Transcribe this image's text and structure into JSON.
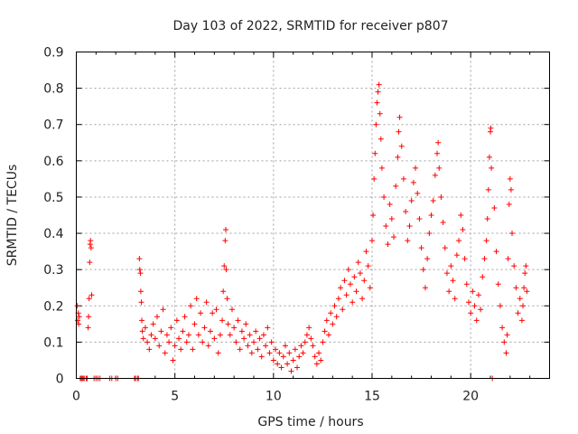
{
  "chart_data": {
    "type": "scatter",
    "title": "Day 103 of 2022, SRMTID for receiver p807",
    "xlabel": "GPS time / hours",
    "ylabel": "SRMTID / TECUs",
    "xlim": [
      0,
      24.0
    ],
    "ylim": [
      0,
      0.9
    ],
    "xticks": [
      0,
      5,
      10,
      15,
      20
    ],
    "xtick_labels": [
      "0",
      "5",
      "10",
      "15",
      "20"
    ],
    "yticks": [
      0,
      0.1,
      0.2,
      0.3,
      0.4,
      0.5,
      0.6,
      0.7,
      0.8,
      0.9
    ],
    "ytick_labels": [
      "0",
      "0.1",
      "0.2",
      "0.3",
      "0.4",
      "0.5",
      "0.6",
      "0.7",
      "0.8",
      "0.9"
    ],
    "grid": true,
    "marker": "+",
    "color": "#ff0000",
    "series": [
      {
        "name": "SRMTID",
        "points": [
          [
            0.05,
            0.2
          ],
          [
            0.07,
            0.16
          ],
          [
            0.1,
            0.18
          ],
          [
            0.12,
            0.15
          ],
          [
            0.15,
            0.17
          ],
          [
            0.2,
            0.0
          ],
          [
            0.25,
            0.0
          ],
          [
            0.3,
            0.0
          ],
          [
            0.35,
            0.0
          ],
          [
            0.4,
            0.0
          ],
          [
            0.5,
            0.0
          ],
          [
            0.55,
            0.0
          ],
          [
            0.6,
            0.14
          ],
          [
            0.62,
            0.17
          ],
          [
            0.65,
            0.22
          ],
          [
            0.68,
            0.32
          ],
          [
            0.7,
            0.37
          ],
          [
            0.72,
            0.38
          ],
          [
            0.75,
            0.36
          ],
          [
            0.78,
            0.23
          ],
          [
            0.9,
            0.0
          ],
          [
            1.0,
            0.0
          ],
          [
            1.1,
            0.0
          ],
          [
            1.2,
            0.0
          ],
          [
            1.7,
            0.0
          ],
          [
            1.8,
            0.0
          ],
          [
            2.0,
            0.0
          ],
          [
            2.1,
            0.0
          ],
          [
            2.95,
            0.0
          ],
          [
            3.0,
            0.0
          ],
          [
            3.1,
            0.0
          ],
          [
            3.15,
            0.0
          ],
          [
            3.2,
            0.33
          ],
          [
            3.22,
            0.3
          ],
          [
            3.25,
            0.29
          ],
          [
            3.27,
            0.24
          ],
          [
            3.3,
            0.21
          ],
          [
            3.32,
            0.16
          ],
          [
            3.35,
            0.13
          ],
          [
            3.4,
            0.11
          ],
          [
            3.5,
            0.14
          ],
          [
            3.6,
            0.1
          ],
          [
            3.7,
            0.08
          ],
          [
            3.8,
            0.12
          ],
          [
            3.9,
            0.15
          ],
          [
            4.0,
            0.11
          ],
          [
            4.1,
            0.17
          ],
          [
            4.2,
            0.09
          ],
          [
            4.3,
            0.13
          ],
          [
            4.4,
            0.19
          ],
          [
            4.5,
            0.07
          ],
          [
            4.6,
            0.12
          ],
          [
            4.7,
            0.1
          ],
          [
            4.8,
            0.14
          ],
          [
            4.9,
            0.05
          ],
          [
            5.0,
            0.09
          ],
          [
            5.1,
            0.16
          ],
          [
            5.2,
            0.11
          ],
          [
            5.3,
            0.08
          ],
          [
            5.4,
            0.13
          ],
          [
            5.5,
            0.17
          ],
          [
            5.6,
            0.1
          ],
          [
            5.7,
            0.12
          ],
          [
            5.8,
            0.2
          ],
          [
            5.9,
            0.08
          ],
          [
            6.0,
            0.15
          ],
          [
            6.1,
            0.22
          ],
          [
            6.2,
            0.12
          ],
          [
            6.3,
            0.18
          ],
          [
            6.4,
            0.1
          ],
          [
            6.5,
            0.14
          ],
          [
            6.6,
            0.21
          ],
          [
            6.7,
            0.09
          ],
          [
            6.8,
            0.13
          ],
          [
            6.9,
            0.18
          ],
          [
            7.0,
            0.11
          ],
          [
            7.1,
            0.19
          ],
          [
            7.2,
            0.07
          ],
          [
            7.3,
            0.12
          ],
          [
            7.4,
            0.16
          ],
          [
            7.45,
            0.24
          ],
          [
            7.5,
            0.31
          ],
          [
            7.55,
            0.38
          ],
          [
            7.58,
            0.41
          ],
          [
            7.6,
            0.3
          ],
          [
            7.65,
            0.22
          ],
          [
            7.7,
            0.15
          ],
          [
            7.8,
            0.12
          ],
          [
            7.9,
            0.19
          ],
          [
            8.0,
            0.14
          ],
          [
            8.1,
            0.1
          ],
          [
            8.2,
            0.16
          ],
          [
            8.3,
            0.08
          ],
          [
            8.4,
            0.13
          ],
          [
            8.5,
            0.11
          ],
          [
            8.6,
            0.15
          ],
          [
            8.7,
            0.09
          ],
          [
            8.8,
            0.12
          ],
          [
            8.9,
            0.07
          ],
          [
            9.0,
            0.1
          ],
          [
            9.1,
            0.13
          ],
          [
            9.2,
            0.08
          ],
          [
            9.3,
            0.11
          ],
          [
            9.4,
            0.06
          ],
          [
            9.5,
            0.12
          ],
          [
            9.6,
            0.09
          ],
          [
            9.7,
            0.14
          ],
          [
            9.8,
            0.07
          ],
          [
            9.9,
            0.1
          ],
          [
            10.0,
            0.05
          ],
          [
            10.1,
            0.08
          ],
          [
            10.2,
            0.04
          ],
          [
            10.3,
            0.07
          ],
          [
            10.4,
            0.03
          ],
          [
            10.5,
            0.06
          ],
          [
            10.6,
            0.09
          ],
          [
            10.7,
            0.04
          ],
          [
            10.8,
            0.07
          ],
          [
            10.9,
            0.02
          ],
          [
            11.0,
            0.05
          ],
          [
            11.1,
            0.08
          ],
          [
            11.2,
            0.03
          ],
          [
            11.3,
            0.06
          ],
          [
            11.4,
            0.09
          ],
          [
            11.5,
            0.07
          ],
          [
            11.6,
            0.1
          ],
          [
            11.7,
            0.12
          ],
          [
            11.8,
            0.14
          ],
          [
            11.9,
            0.11
          ],
          [
            12.0,
            0.09
          ],
          [
            12.1,
            0.06
          ],
          [
            12.2,
            0.04
          ],
          [
            12.3,
            0.07
          ],
          [
            12.4,
            0.05
          ],
          [
            12.5,
            0.1
          ],
          [
            12.6,
            0.13
          ],
          [
            12.7,
            0.16
          ],
          [
            12.8,
            0.12
          ],
          [
            12.9,
            0.18
          ],
          [
            13.0,
            0.15
          ],
          [
            13.1,
            0.2
          ],
          [
            13.2,
            0.17
          ],
          [
            13.3,
            0.22
          ],
          [
            13.4,
            0.25
          ],
          [
            13.5,
            0.19
          ],
          [
            13.6,
            0.27
          ],
          [
            13.7,
            0.23
          ],
          [
            13.8,
            0.3
          ],
          [
            13.9,
            0.26
          ],
          [
            14.0,
            0.21
          ],
          [
            14.1,
            0.28
          ],
          [
            14.2,
            0.24
          ],
          [
            14.3,
            0.32
          ],
          [
            14.4,
            0.29
          ],
          [
            14.5,
            0.22
          ],
          [
            14.6,
            0.27
          ],
          [
            14.7,
            0.35
          ],
          [
            14.8,
            0.31
          ],
          [
            14.9,
            0.25
          ],
          [
            15.0,
            0.38
          ],
          [
            15.05,
            0.45
          ],
          [
            15.1,
            0.55
          ],
          [
            15.15,
            0.62
          ],
          [
            15.2,
            0.7
          ],
          [
            15.25,
            0.76
          ],
          [
            15.3,
            0.79
          ],
          [
            15.35,
            0.81
          ],
          [
            15.4,
            0.73
          ],
          [
            15.45,
            0.66
          ],
          [
            15.5,
            0.58
          ],
          [
            15.6,
            0.5
          ],
          [
            15.7,
            0.42
          ],
          [
            15.8,
            0.37
          ],
          [
            15.9,
            0.48
          ],
          [
            16.0,
            0.44
          ],
          [
            16.1,
            0.39
          ],
          [
            16.2,
            0.53
          ],
          [
            16.3,
            0.61
          ],
          [
            16.35,
            0.68
          ],
          [
            16.4,
            0.72
          ],
          [
            16.5,
            0.64
          ],
          [
            16.6,
            0.55
          ],
          [
            16.7,
            0.46
          ],
          [
            16.8,
            0.38
          ],
          [
            16.9,
            0.42
          ],
          [
            17.0,
            0.49
          ],
          [
            17.1,
            0.54
          ],
          [
            17.2,
            0.58
          ],
          [
            17.3,
            0.51
          ],
          [
            17.4,
            0.44
          ],
          [
            17.5,
            0.36
          ],
          [
            17.6,
            0.3
          ],
          [
            17.7,
            0.25
          ],
          [
            17.8,
            0.33
          ],
          [
            17.9,
            0.4
          ],
          [
            18.0,
            0.45
          ],
          [
            18.1,
            0.49
          ],
          [
            18.2,
            0.56
          ],
          [
            18.3,
            0.62
          ],
          [
            18.35,
            0.65
          ],
          [
            18.4,
            0.58
          ],
          [
            18.5,
            0.5
          ],
          [
            18.6,
            0.43
          ],
          [
            18.7,
            0.36
          ],
          [
            18.8,
            0.29
          ],
          [
            18.9,
            0.24
          ],
          [
            19.0,
            0.31
          ],
          [
            19.1,
            0.27
          ],
          [
            19.2,
            0.22
          ],
          [
            19.3,
            0.34
          ],
          [
            19.4,
            0.38
          ],
          [
            19.5,
            0.45
          ],
          [
            19.6,
            0.41
          ],
          [
            19.7,
            0.33
          ],
          [
            19.8,
            0.26
          ],
          [
            19.9,
            0.21
          ],
          [
            20.0,
            0.18
          ],
          [
            20.1,
            0.24
          ],
          [
            20.2,
            0.2
          ],
          [
            20.3,
            0.16
          ],
          [
            20.4,
            0.23
          ],
          [
            20.5,
            0.19
          ],
          [
            20.6,
            0.28
          ],
          [
            20.7,
            0.33
          ],
          [
            20.8,
            0.38
          ],
          [
            20.85,
            0.44
          ],
          [
            20.9,
            0.52
          ],
          [
            20.95,
            0.61
          ],
          [
            21.0,
            0.68
          ],
          [
            21.02,
            0.69
          ],
          [
            21.05,
            0.58
          ],
          [
            21.1,
            0.0
          ],
          [
            21.2,
            0.47
          ],
          [
            21.3,
            0.35
          ],
          [
            21.4,
            0.26
          ],
          [
            21.5,
            0.2
          ],
          [
            21.6,
            0.14
          ],
          [
            21.7,
            0.1
          ],
          [
            21.8,
            0.07
          ],
          [
            21.85,
            0.12
          ],
          [
            21.9,
            0.33
          ],
          [
            21.95,
            0.48
          ],
          [
            22.0,
            0.55
          ],
          [
            22.05,
            0.52
          ],
          [
            22.1,
            0.4
          ],
          [
            22.2,
            0.31
          ],
          [
            22.3,
            0.25
          ],
          [
            22.4,
            0.18
          ],
          [
            22.5,
            0.22
          ],
          [
            22.6,
            0.16
          ],
          [
            22.65,
            0.2
          ],
          [
            22.7,
            0.25
          ],
          [
            22.75,
            0.29
          ],
          [
            22.8,
            0.31
          ],
          [
            22.85,
            0.24
          ]
        ]
      }
    ]
  }
}
